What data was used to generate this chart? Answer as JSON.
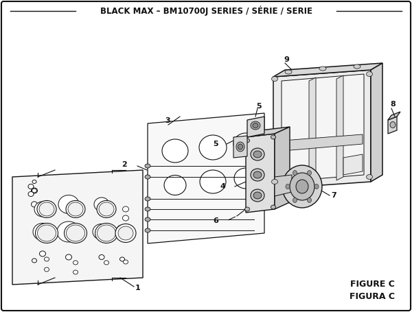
{
  "title": "BLACK MAX – BM10700J SERIES / SÉRIE / SERIE",
  "figure_label": "FIGURE C",
  "figura_label": "FIGURA C",
  "bg_color": "#ffffff",
  "border_color": "#111111",
  "title_fontsize": 8.5,
  "figure_fontsize": 9
}
